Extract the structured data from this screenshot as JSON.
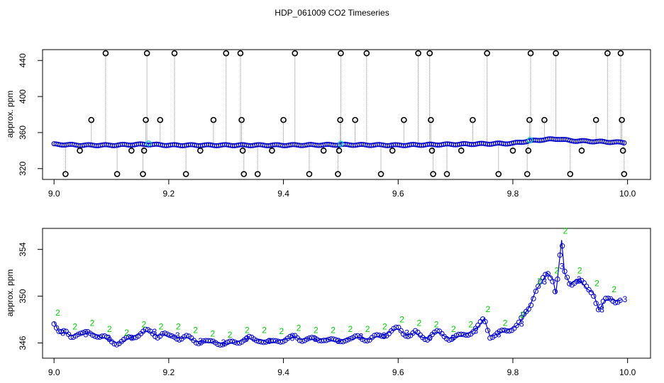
{
  "title": "HDP_061009  CO2 Timeseries",
  "colors": {
    "line": "#808080",
    "outlier": "#000000",
    "series_blue": "#0000cc",
    "series_cyan": "#00cccc",
    "series_green": "#00cc00"
  },
  "chart_data": [
    {
      "type": "scatter",
      "ylabel": "approx. ppm",
      "xlim": [
        8.98,
        10.04
      ],
      "ylim": [
        308,
        452
      ],
      "x_ticks": [
        "9.0",
        "9.2",
        "9.4",
        "9.6",
        "9.8",
        "10.0"
      ],
      "y_ticks": [
        "320",
        "360",
        "400",
        "440"
      ],
      "y_tick_values": [
        320,
        360,
        400,
        440
      ],
      "x_tick_values": [
        9.0,
        9.2,
        9.4,
        9.6,
        9.8,
        10.0
      ],
      "baseline": [
        [
          9.0,
          347
        ],
        [
          9.05,
          346
        ],
        [
          9.1,
          346
        ],
        [
          9.16,
          347
        ],
        [
          9.2,
          346
        ],
        [
          9.3,
          346
        ],
        [
          9.4,
          346
        ],
        [
          9.5,
          346.5
        ],
        [
          9.6,
          346
        ],
        [
          9.7,
          347
        ],
        [
          9.75,
          347.5
        ],
        [
          9.8,
          348
        ],
        [
          9.82,
          350
        ],
        [
          9.85,
          352
        ],
        [
          9.88,
          353
        ],
        [
          9.9,
          351
        ],
        [
          9.95,
          350
        ],
        [
          9.99,
          349
        ]
      ],
      "outliers": [
        {
          "x": 9.02,
          "y": 314
        },
        {
          "x": 9.045,
          "y": 340
        },
        {
          "x": 9.065,
          "y": 374
        },
        {
          "x": 9.09,
          "y": 448
        },
        {
          "x": 9.11,
          "y": 314
        },
        {
          "x": 9.135,
          "y": 340
        },
        {
          "x": 9.155,
          "y": 314
        },
        {
          "x": 9.157,
          "y": 340
        },
        {
          "x": 9.16,
          "y": 374
        },
        {
          "x": 9.162,
          "y": 448
        },
        {
          "x": 9.185,
          "y": 374
        },
        {
          "x": 9.21,
          "y": 448
        },
        {
          "x": 9.23,
          "y": 314
        },
        {
          "x": 9.255,
          "y": 340
        },
        {
          "x": 9.278,
          "y": 374
        },
        {
          "x": 9.3,
          "y": 448
        },
        {
          "x": 9.325,
          "y": 448
        },
        {
          "x": 9.327,
          "y": 374
        },
        {
          "x": 9.329,
          "y": 340
        },
        {
          "x": 9.331,
          "y": 314
        },
        {
          "x": 9.355,
          "y": 314
        },
        {
          "x": 9.38,
          "y": 340
        },
        {
          "x": 9.4,
          "y": 374
        },
        {
          "x": 9.42,
          "y": 448
        },
        {
          "x": 9.445,
          "y": 314
        },
        {
          "x": 9.47,
          "y": 340
        },
        {
          "x": 9.495,
          "y": 314
        },
        {
          "x": 9.497,
          "y": 340
        },
        {
          "x": 9.499,
          "y": 374
        },
        {
          "x": 9.5,
          "y": 448
        },
        {
          "x": 9.525,
          "y": 374
        },
        {
          "x": 9.545,
          "y": 448
        },
        {
          "x": 9.57,
          "y": 314
        },
        {
          "x": 9.59,
          "y": 340
        },
        {
          "x": 9.61,
          "y": 374
        },
        {
          "x": 9.635,
          "y": 448
        },
        {
          "x": 9.655,
          "y": 448
        },
        {
          "x": 9.657,
          "y": 374
        },
        {
          "x": 9.659,
          "y": 340
        },
        {
          "x": 9.661,
          "y": 314
        },
        {
          "x": 9.685,
          "y": 314
        },
        {
          "x": 9.71,
          "y": 340
        },
        {
          "x": 9.73,
          "y": 374
        },
        {
          "x": 9.755,
          "y": 448
        },
        {
          "x": 9.775,
          "y": 314
        },
        {
          "x": 9.8,
          "y": 340
        },
        {
          "x": 9.825,
          "y": 314
        },
        {
          "x": 9.827,
          "y": 340
        },
        {
          "x": 9.829,
          "y": 374
        },
        {
          "x": 9.831,
          "y": 448
        },
        {
          "x": 9.855,
          "y": 374
        },
        {
          "x": 9.875,
          "y": 448
        },
        {
          "x": 9.9,
          "y": 314
        },
        {
          "x": 9.92,
          "y": 340
        },
        {
          "x": 9.945,
          "y": 374
        },
        {
          "x": 9.965,
          "y": 448
        },
        {
          "x": 9.988,
          "y": 448
        },
        {
          "x": 9.99,
          "y": 374
        },
        {
          "x": 9.992,
          "y": 340
        },
        {
          "x": 9.994,
          "y": 314
        }
      ]
    },
    {
      "type": "line",
      "ylabel": "approx. ppm",
      "xlim": [
        8.98,
        10.04
      ],
      "ylim": [
        344.7,
        355.8
      ],
      "x_ticks": [
        "9.0",
        "9.2",
        "9.4",
        "9.6",
        "9.8",
        "10.0"
      ],
      "y_ticks": [
        "346",
        "350",
        "354"
      ],
      "y_tick_values": [
        346,
        350,
        354
      ],
      "x_tick_values": [
        9.0,
        9.2,
        9.4,
        9.6,
        9.8,
        10.0
      ],
      "point_labels": [
        "2",
        "3"
      ],
      "x": [
        9.0,
        9.01,
        9.02,
        9.03,
        9.04,
        9.05,
        9.06,
        9.07,
        9.08,
        9.09,
        9.1,
        9.11,
        9.12,
        9.13,
        9.14,
        9.15,
        9.16,
        9.17,
        9.18,
        9.19,
        9.2,
        9.21,
        9.22,
        9.23,
        9.24,
        9.25,
        9.26,
        9.27,
        9.28,
        9.29,
        9.3,
        9.31,
        9.32,
        9.33,
        9.34,
        9.35,
        9.36,
        9.37,
        9.38,
        9.39,
        9.4,
        9.41,
        9.42,
        9.43,
        9.44,
        9.45,
        9.46,
        9.47,
        9.48,
        9.49,
        9.5,
        9.51,
        9.52,
        9.53,
        9.54,
        9.55,
        9.56,
        9.57,
        9.58,
        9.59,
        9.6,
        9.61,
        9.62,
        9.63,
        9.64,
        9.65,
        9.66,
        9.67,
        9.68,
        9.69,
        9.7,
        9.71,
        9.72,
        9.73,
        9.74,
        9.75,
        9.76,
        9.77,
        9.78,
        9.79,
        9.8,
        9.81,
        9.82,
        9.83,
        9.84,
        9.85,
        9.86,
        9.87,
        9.875,
        9.88,
        9.885,
        9.89,
        9.9,
        9.91,
        9.92,
        9.93,
        9.94,
        9.95,
        9.96,
        9.97,
        9.98,
        9.99
      ],
      "series": [
        {
          "values": [
            347.8,
            346.8,
            346.9,
            346.6,
            346.8,
            346.7,
            346.9,
            346.8,
            346.5,
            346.4,
            346.2,
            346.0,
            346.1,
            346.4,
            346.6,
            346.8,
            347.0,
            346.9,
            346.6,
            346.8,
            346.5,
            346.6,
            346.4,
            346.5,
            346.3,
            346.1,
            346.2,
            346.0,
            346.1,
            346.0,
            345.9,
            346.0,
            346.1,
            346.3,
            346.4,
            346.2,
            346.3,
            346.1,
            346.0,
            346.2,
            346.3,
            346.4,
            346.5,
            346.3,
            346.4,
            346.3,
            346.2,
            346.4,
            346.3,
            346.1,
            346.2,
            346.4,
            346.3,
            346.5,
            346.4,
            346.3,
            346.5,
            346.6,
            346.8,
            347.1,
            347.2,
            346.8,
            346.7,
            346.9,
            346.5,
            346.4,
            346.8,
            346.9,
            346.6,
            346.4,
            346.5,
            346.6,
            346.8,
            347.0,
            347.4,
            348.1,
            346.6,
            346.7,
            346.9,
            347.1,
            347.3,
            347.6,
            348.4,
            349.2,
            350.5,
            351.2,
            352.0,
            351.4,
            350.2,
            352.5,
            354.8,
            352.0,
            351.0,
            351.4,
            351.2,
            350.6,
            350.3,
            348.8,
            349.6,
            349.8,
            349.6,
            349.7
          ]
        }
      ]
    }
  ]
}
